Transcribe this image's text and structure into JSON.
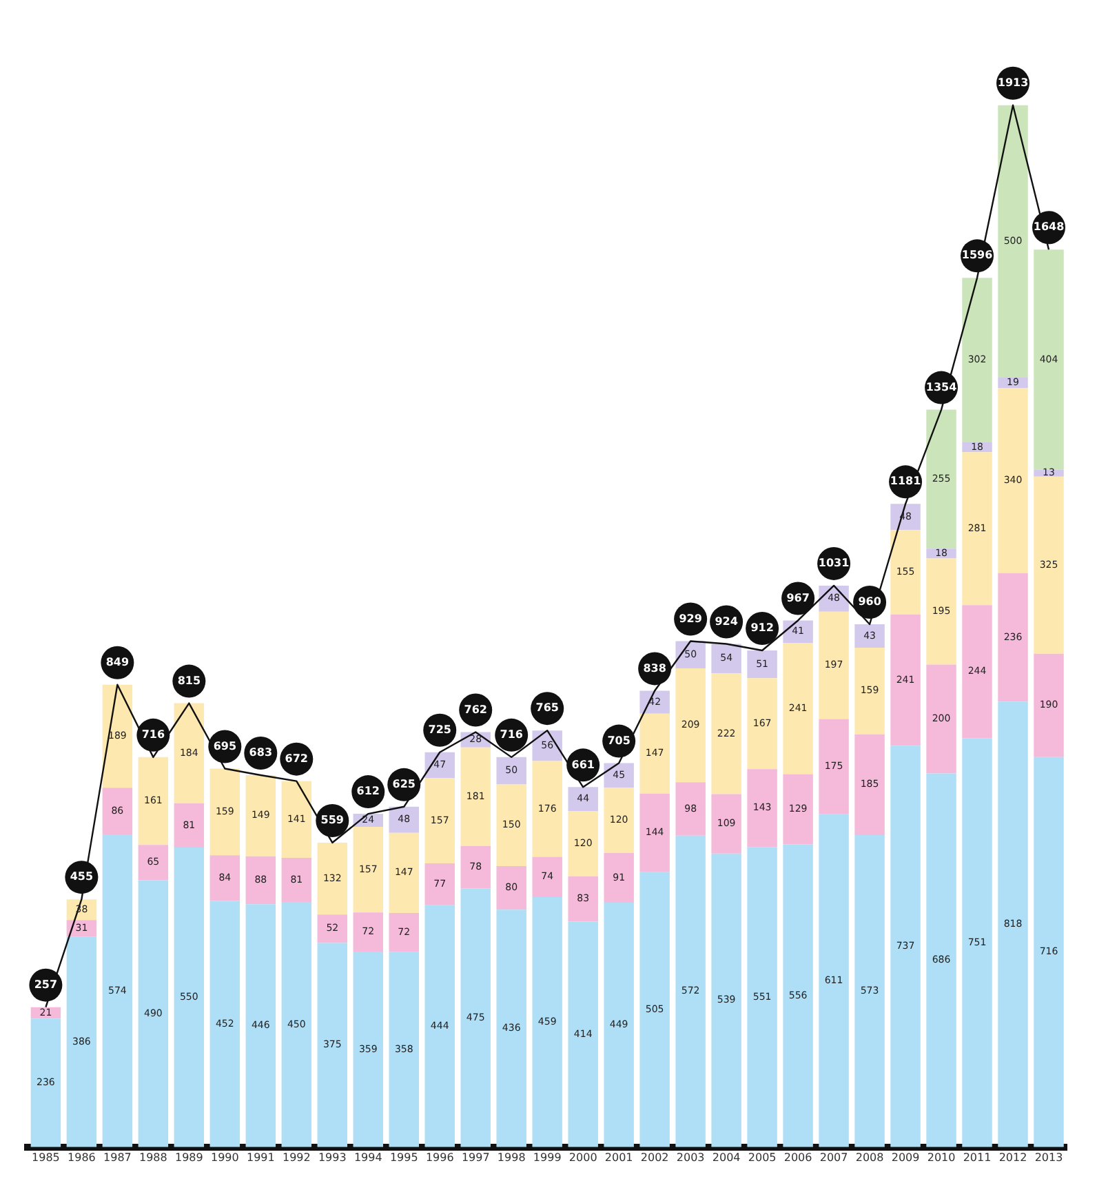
{
  "chart_data": {
    "type": "bar",
    "stacked": true,
    "legend": false,
    "grid": false,
    "tick_labels": "x",
    "totals": [
      "257",
      "455",
      "849",
      "716",
      "815",
      "695",
      "683",
      "672",
      "559",
      "612",
      "625",
      "725",
      "762",
      "716",
      "765",
      "661",
      "705",
      "838",
      "929",
      "924",
      "912",
      "967",
      "1031",
      "960",
      "1181",
      "1354",
      "1596",
      "1913",
      "1648"
    ],
    "categories": [
      "1985",
      "1986",
      "1987",
      "1988",
      "1989",
      "1990",
      "1991",
      "1992",
      "1993",
      "1994",
      "1995",
      "1996",
      "1997",
      "1998",
      "1999",
      "2000",
      "2001",
      "2002",
      "2003",
      "2004",
      "2005",
      "2006",
      "2007",
      "2008",
      "2009",
      "2010",
      "2011",
      "2012",
      "2013"
    ],
    "series": [
      {
        "color": "#aedff7",
        "values": [
          236,
          386,
          574,
          490,
          550,
          452,
          446,
          450,
          375,
          359,
          358,
          444,
          475,
          436,
          459,
          414,
          449,
          505,
          572,
          539,
          551,
          556,
          611,
          573,
          737,
          686,
          751,
          818,
          716
        ],
        "value_labels": [
          "236",
          "386",
          "574",
          "490",
          "550",
          "452",
          "446",
          "450",
          "375",
          "359",
          "358",
          "444",
          "475",
          "436",
          "459",
          "414",
          "449",
          "505",
          "572",
          "539",
          "551",
          "556",
          "611",
          "573",
          "737",
          "686",
          "751",
          "818",
          "716"
        ]
      },
      {
        "color": "#f5b9d9",
        "values": [
          21,
          31,
          86,
          65,
          81,
          84,
          88,
          81,
          52,
          72,
          72,
          77,
          78,
          80,
          74,
          83,
          91,
          144,
          98,
          109,
          143,
          129,
          175,
          185,
          241,
          200,
          244,
          236,
          190
        ],
        "value_labels": [
          "21",
          "31",
          "86",
          "65",
          "81",
          "84",
          "88",
          "81",
          "52",
          "72",
          "72",
          "77",
          "78",
          "80",
          "74",
          "83",
          "91",
          "144",
          "98",
          "109",
          "143",
          "129",
          "175",
          "185",
          "241",
          "200",
          "244",
          "236",
          "190"
        ]
      },
      {
        "color": "#fde8b0",
        "values": [
          null,
          38,
          189,
          161,
          184,
          159,
          149,
          141,
          132,
          157,
          147,
          157,
          181,
          150,
          176,
          120,
          120,
          147,
          209,
          222,
          167,
          241,
          197,
          159,
          155,
          195,
          281,
          340,
          325
        ],
        "value_labels": [
          null,
          "38",
          "189",
          "161",
          "184",
          "159",
          "149",
          "141",
          "132",
          "157",
          "147",
          "157",
          "181",
          "150",
          "176",
          "120",
          "120",
          "147",
          "209",
          "222",
          "167",
          "241",
          "197",
          "159",
          "155",
          "195",
          "281",
          "340",
          "325"
        ]
      },
      {
        "color": "#d2c9ec",
        "values": [
          null,
          null,
          null,
          null,
          null,
          null,
          null,
          null,
          null,
          24,
          48,
          47,
          28,
          50,
          56,
          44,
          45,
          42,
          50,
          54,
          51,
          41,
          48,
          43,
          48,
          18,
          18,
          19,
          13
        ],
        "value_labels": [
          null,
          null,
          null,
          null,
          null,
          null,
          null,
          null,
          null,
          "24",
          "48",
          "47",
          "28",
          "50",
          "56",
          "44",
          "45",
          "42",
          "50",
          "54",
          "51",
          "41",
          "48",
          "43",
          "48",
          "18",
          "18",
          "19",
          "13"
        ]
      },
      {
        "color": "#cbe4ba",
        "values": [
          null,
          null,
          null,
          null,
          null,
          null,
          null,
          null,
          null,
          null,
          null,
          null,
          null,
          null,
          null,
          null,
          null,
          null,
          null,
          null,
          null,
          null,
          null,
          null,
          null,
          255,
          302,
          500,
          404
        ],
        "value_labels": [
          null,
          null,
          null,
          null,
          null,
          null,
          null,
          null,
          null,
          null,
          null,
          null,
          null,
          null,
          null,
          null,
          null,
          null,
          null,
          null,
          null,
          null,
          null,
          null,
          null,
          "255",
          "302",
          "500",
          "404"
        ]
      },
      {
        "type": "line",
        "color": "#111111",
        "values": [
          257,
          455,
          849,
          716,
          815,
          695,
          683,
          672,
          559,
          612,
          625,
          725,
          762,
          716,
          765,
          661,
          705,
          838,
          929,
          924,
          912,
          967,
          1031,
          960,
          1181,
          1354,
          1596,
          1913,
          1648
        ]
      }
    ]
  }
}
